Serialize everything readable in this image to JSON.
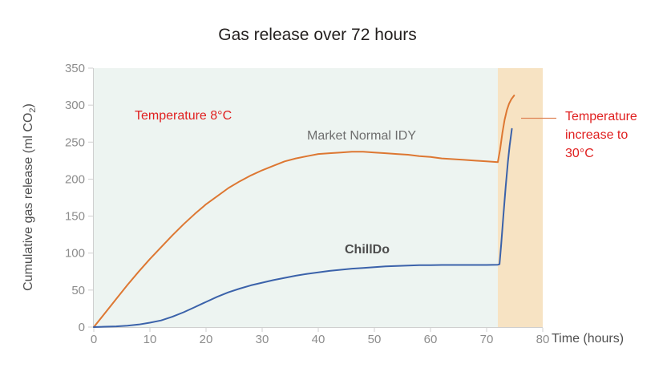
{
  "page": {
    "background": "#ffffff"
  },
  "chart_data": {
    "type": "line",
    "title": "Gas release over 72 hours",
    "xlabel": "Time (hours)",
    "ylabel": "Cumulative gas release (ml CO2)",
    "ylabel_parts": {
      "prefix": "Cumulative gas release (ml CO",
      "sub": "2",
      "suffix": ")"
    },
    "xlim": [
      0,
      80
    ],
    "ylim": [
      0,
      350
    ],
    "xticks": [
      0,
      10,
      20,
      30,
      40,
      50,
      60,
      70,
      80
    ],
    "yticks": [
      0,
      50,
      100,
      150,
      200,
      250,
      300,
      350
    ],
    "grid": false,
    "legend": "inline-labels",
    "bands": [
      {
        "name": "band-temperature-8c",
        "x0": 0,
        "x1": 72,
        "color": "#edf4f1",
        "label": "Temperature 8°C"
      },
      {
        "name": "band-temperature-30c",
        "x0": 72,
        "x1": 80,
        "color": "#f7e3c3",
        "label": "Temperature increase to 30°C"
      }
    ],
    "series": [
      {
        "name": "Market Normal IDY",
        "color": "#dd7732",
        "x": [
          0,
          2,
          4,
          6,
          8,
          10,
          12,
          14,
          16,
          18,
          20,
          22,
          24,
          26,
          28,
          30,
          32,
          34,
          36,
          38,
          40,
          42,
          44,
          46,
          48,
          50,
          52,
          54,
          56,
          58,
          60,
          62,
          64,
          66,
          68,
          70,
          71,
          72,
          72.4,
          72.8,
          73.2,
          73.6,
          74,
          74.4,
          74.9
        ],
        "y": [
          0,
          19,
          38,
          57,
          75,
          92,
          108,
          124,
          139,
          153,
          166,
          177,
          188,
          197,
          205,
          212,
          218,
          224,
          228,
          231,
          234,
          235,
          236,
          237,
          237,
          236,
          235,
          234,
          233,
          231,
          230,
          228,
          227,
          226,
          225,
          224,
          223.5,
          223,
          240,
          262,
          280,
          293,
          302,
          308,
          313
        ]
      },
      {
        "name": "ChillDo",
        "color": "#3b62aa",
        "x": [
          0,
          2,
          4,
          6,
          8,
          10,
          12,
          14,
          16,
          18,
          20,
          22,
          24,
          26,
          28,
          30,
          32,
          34,
          36,
          38,
          40,
          42,
          44,
          46,
          48,
          50,
          52,
          54,
          56,
          58,
          60,
          62,
          64,
          66,
          68,
          70,
          72,
          72.3,
          72.6,
          73,
          73.4,
          73.8,
          74.1,
          74.5
        ],
        "y": [
          0,
          0.5,
          1,
          2,
          3.5,
          6,
          9,
          14,
          20,
          27,
          34,
          41,
          47,
          52,
          56.5,
          60,
          63.5,
          66.5,
          69.5,
          72,
          74,
          76,
          77.5,
          79,
          80,
          81,
          82,
          82.7,
          83.2,
          83.6,
          83.8,
          84,
          84,
          84,
          84,
          84,
          84.3,
          85,
          112,
          152,
          190,
          224,
          245,
          268
        ]
      }
    ],
    "annotations": [
      {
        "id": "temp8",
        "text": "Temperature 8°C",
        "color": "#e02020"
      },
      {
        "id": "market",
        "text": "Market Normal IDY",
        "color": "#6e6e6e"
      },
      {
        "id": "chilldo",
        "text": "ChillDo",
        "color": "#4d4d4d"
      },
      {
        "id": "temp30",
        "text": "Temperature increase to 30°C",
        "color": "#e02020"
      }
    ],
    "colors": {
      "axis": "#cfcfcf",
      "tick_label": "#8c8c8c",
      "title": "#231f1e",
      "leader": "#df8456",
      "band_8c": "#edf4f1",
      "band_30c": "#f7e3c3",
      "line_market": "#dd7732",
      "line_chilldo": "#3b62aa"
    }
  }
}
